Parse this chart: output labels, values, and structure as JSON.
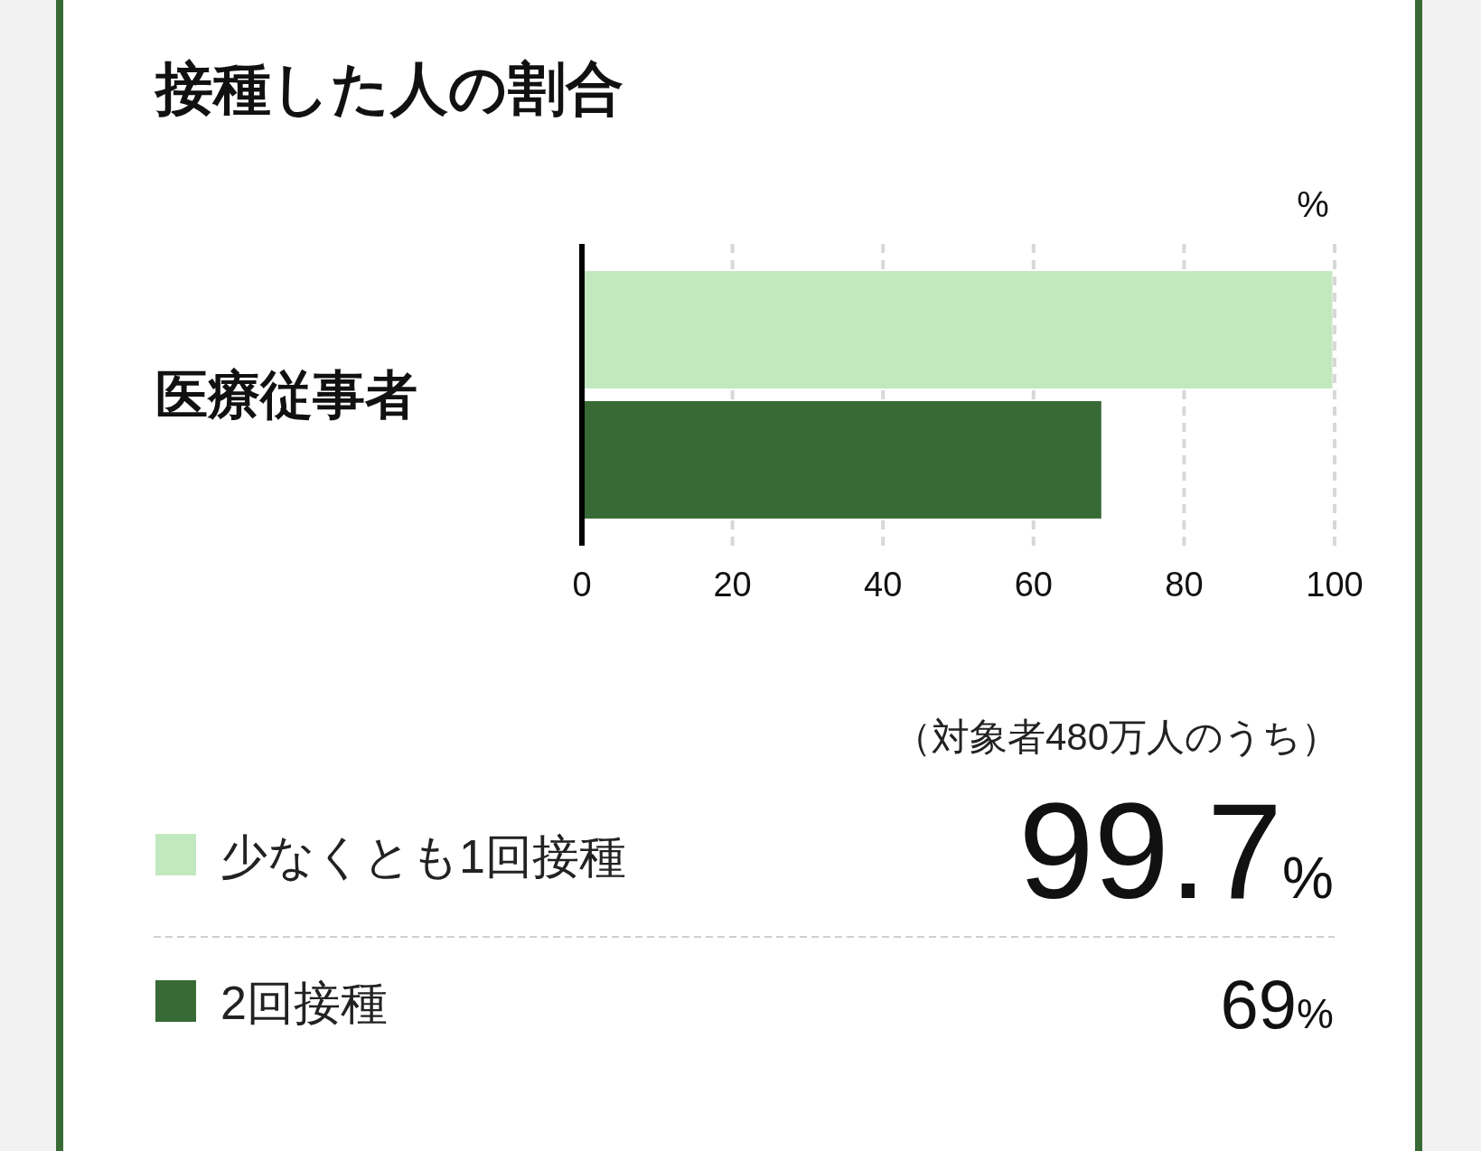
{
  "chart_data": {
    "type": "bar",
    "orientation": "horizontal",
    "title": "接種した人の割合",
    "categories": [
      "医療従事者"
    ],
    "series": [
      {
        "name": "少なくとも1回接種",
        "color": "#c2e8c0",
        "values": [
          99.7
        ]
      },
      {
        "name": "2回接種",
        "color": "#376a35",
        "values": [
          69
        ]
      }
    ],
    "xlim": [
      0,
      100
    ],
    "xticks": [
      0,
      20,
      40,
      60,
      80,
      100
    ],
    "xlabel": "%",
    "grid": "x",
    "legend": "bottom",
    "annotations": [
      "（対象者480万人のうち）",
      "99.7%",
      "69%"
    ]
  }
}
